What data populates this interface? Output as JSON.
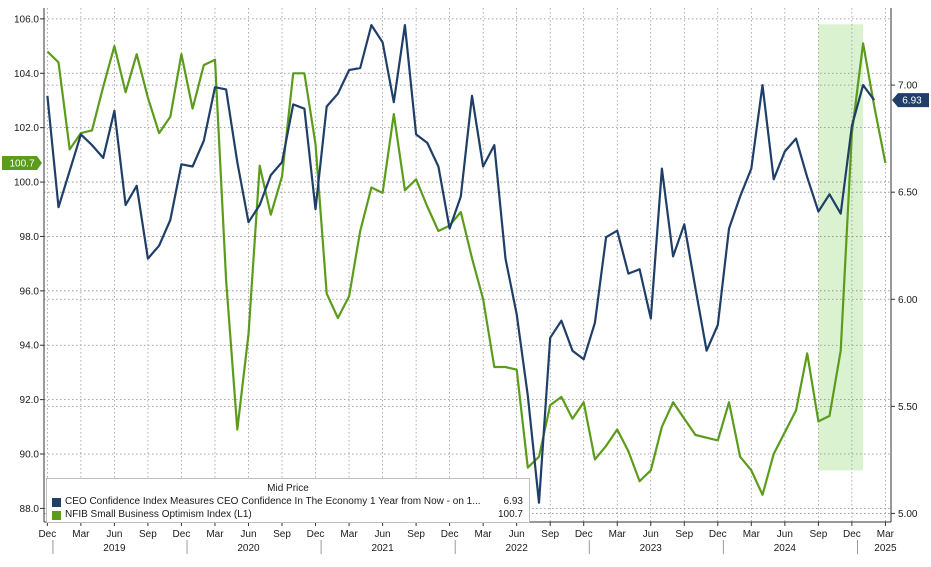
{
  "colors": {
    "ceo": "#1f3f68",
    "nfib": "#5c9c1c",
    "highlight": "#cdeec0",
    "grid": "#8a8a8a"
  },
  "legend": {
    "title": "Mid Price",
    "items": [
      {
        "label": "CEO Confidence Index Measures CEO Confidence In The Economy 1 Year from Now -  on 1...",
        "value": "6.93"
      },
      {
        "label": "NFIB Small Business Optimism Index  (L1)",
        "value": "100.7"
      }
    ]
  },
  "chart_data": {
    "type": "line",
    "title": "",
    "xlabel": "",
    "x_range": [
      "2018-12",
      "2025-03"
    ],
    "x_ticks": [
      {
        "label": "Dec",
        "date": "2018-12"
      },
      {
        "label": "Mar",
        "date": "2019-03"
      },
      {
        "label": "Jun",
        "date": "2019-06"
      },
      {
        "label": "Sep",
        "date": "2019-09"
      },
      {
        "label": "Dec",
        "date": "2019-12"
      },
      {
        "label": "Mar",
        "date": "2020-03"
      },
      {
        "label": "Jun",
        "date": "2020-06"
      },
      {
        "label": "Sep",
        "date": "2020-09"
      },
      {
        "label": "Dec",
        "date": "2020-12"
      },
      {
        "label": "Mar",
        "date": "2021-03"
      },
      {
        "label": "Jun",
        "date": "2021-06"
      },
      {
        "label": "Sep",
        "date": "2021-09"
      },
      {
        "label": "Dec",
        "date": "2021-12"
      },
      {
        "label": "Mar",
        "date": "2022-03"
      },
      {
        "label": "Jun",
        "date": "2022-06"
      },
      {
        "label": "Sep",
        "date": "2022-09"
      },
      {
        "label": "Dec",
        "date": "2022-12"
      },
      {
        "label": "Mar",
        "date": "2023-03"
      },
      {
        "label": "Jun",
        "date": "2023-06"
      },
      {
        "label": "Sep",
        "date": "2023-09"
      },
      {
        "label": "Dec",
        "date": "2023-12"
      },
      {
        "label": "Mar",
        "date": "2024-03"
      },
      {
        "label": "Jun",
        "date": "2024-06"
      },
      {
        "label": "Sep",
        "date": "2024-09"
      },
      {
        "label": "Dec",
        "date": "2024-12"
      },
      {
        "label": "Mar",
        "date": "2025-03"
      }
    ],
    "year_labels": [
      {
        "label": "2019",
        "date": "2019-06"
      },
      {
        "label": "2020",
        "date": "2020-06"
      },
      {
        "label": "2021",
        "date": "2021-06"
      },
      {
        "label": "2022",
        "date": "2022-06"
      },
      {
        "label": "2023",
        "date": "2023-06"
      },
      {
        "label": "2024",
        "date": "2024-06"
      },
      {
        "label": "2025",
        "date": "2025-03"
      }
    ],
    "left_axis": {
      "ylim": [
        87.5,
        106.4
      ],
      "ticks": [
        "88.0",
        "90.0",
        "92.0",
        "94.0",
        "96.0",
        "98.0",
        "100.0",
        "102.0",
        "104.0",
        "106.0"
      ]
    },
    "right_axis": {
      "ylim": [
        4.96,
        7.36
      ],
      "ticks": [
        "5.00",
        "5.50",
        "6.00",
        "6.50",
        "7.00"
      ]
    },
    "highlight_range": {
      "start": "2024-09",
      "end": "2025-01",
      "y_left": [
        89.4,
        105.8
      ]
    },
    "grid": "dotted",
    "legend_position": "bottom-left",
    "series": [
      {
        "name": "NFIB Small Business Optimism Index  (L1)",
        "axis": "left",
        "last_value_label": "100.7",
        "points": [
          {
            "x": "2018-12",
            "y": 104.8
          },
          {
            "x": "2019-01",
            "y": 104.4
          },
          {
            "x": "2019-02",
            "y": 101.2
          },
          {
            "x": "2019-03",
            "y": 101.8
          },
          {
            "x": "2019-04",
            "y": 101.9
          },
          {
            "x": "2019-05",
            "y": 103.5
          },
          {
            "x": "2019-06",
            "y": 105.0
          },
          {
            "x": "2019-07",
            "y": 103.3
          },
          {
            "x": "2019-08",
            "y": 104.7
          },
          {
            "x": "2019-09",
            "y": 103.1
          },
          {
            "x": "2019-10",
            "y": 101.8
          },
          {
            "x": "2019-11",
            "y": 102.4
          },
          {
            "x": "2019-12",
            "y": 104.7
          },
          {
            "x": "2020-01",
            "y": 102.7
          },
          {
            "x": "2020-02",
            "y": 104.3
          },
          {
            "x": "2020-03",
            "y": 104.5
          },
          {
            "x": "2020-04",
            "y": 96.4
          },
          {
            "x": "2020-05",
            "y": 90.9
          },
          {
            "x": "2020-06",
            "y": 94.4
          },
          {
            "x": "2020-07",
            "y": 100.6
          },
          {
            "x": "2020-08",
            "y": 98.8
          },
          {
            "x": "2020-09",
            "y": 100.2
          },
          {
            "x": "2020-10",
            "y": 104.0
          },
          {
            "x": "2020-11",
            "y": 104.0
          },
          {
            "x": "2020-12",
            "y": 101.4
          },
          {
            "x": "2021-01",
            "y": 95.9
          },
          {
            "x": "2021-02",
            "y": 95.0
          },
          {
            "x": "2021-03",
            "y": 95.8
          },
          {
            "x": "2021-04",
            "y": 98.2
          },
          {
            "x": "2021-05",
            "y": 99.8
          },
          {
            "x": "2021-06",
            "y": 99.6
          },
          {
            "x": "2021-07",
            "y": 102.5
          },
          {
            "x": "2021-08",
            "y": 99.7
          },
          {
            "x": "2021-09",
            "y": 100.1
          },
          {
            "x": "2021-10",
            "y": 99.1
          },
          {
            "x": "2021-11",
            "y": 98.2
          },
          {
            "x": "2021-12",
            "y": 98.4
          },
          {
            "x": "2022-01",
            "y": 98.9
          },
          {
            "x": "2022-02",
            "y": 97.2
          },
          {
            "x": "2022-03",
            "y": 95.7
          },
          {
            "x": "2022-04",
            "y": 93.2
          },
          {
            "x": "2022-05",
            "y": 93.2
          },
          {
            "x": "2022-06",
            "y": 93.1
          },
          {
            "x": "2022-07",
            "y": 89.5
          },
          {
            "x": "2022-08",
            "y": 89.9
          },
          {
            "x": "2022-09",
            "y": 91.8
          },
          {
            "x": "2022-10",
            "y": 92.1
          },
          {
            "x": "2022-11",
            "y": 91.3
          },
          {
            "x": "2022-12",
            "y": 91.9
          },
          {
            "x": "2023-01",
            "y": 89.8
          },
          {
            "x": "2023-02",
            "y": 90.3
          },
          {
            "x": "2023-03",
            "y": 90.9
          },
          {
            "x": "2023-04",
            "y": 90.1
          },
          {
            "x": "2023-05",
            "y": 89.0
          },
          {
            "x": "2023-06",
            "y": 89.4
          },
          {
            "x": "2023-07",
            "y": 91.0
          },
          {
            "x": "2023-08",
            "y": 91.9
          },
          {
            "x": "2023-09",
            "y": 91.3
          },
          {
            "x": "2023-10",
            "y": 90.7
          },
          {
            "x": "2023-11",
            "y": 90.6
          },
          {
            "x": "2023-12",
            "y": 90.5
          },
          {
            "x": "2024-01",
            "y": 91.9
          },
          {
            "x": "2024-02",
            "y": 89.9
          },
          {
            "x": "2024-03",
            "y": 89.4
          },
          {
            "x": "2024-04",
            "y": 88.5
          },
          {
            "x": "2024-05",
            "y": 90.0
          },
          {
            "x": "2024-06",
            "y": 90.8
          },
          {
            "x": "2024-07",
            "y": 91.6
          },
          {
            "x": "2024-08",
            "y": 93.7
          },
          {
            "x": "2024-09",
            "y": 91.2
          },
          {
            "x": "2024-10",
            "y": 91.4
          },
          {
            "x": "2024-11",
            "y": 93.8
          },
          {
            "x": "2024-12",
            "y": 101.8
          },
          {
            "x": "2025-01",
            "y": 105.1
          },
          {
            "x": "2025-02",
            "y": 102.8
          },
          {
            "x": "2025-03",
            "y": 100.7
          }
        ]
      },
      {
        "name": "CEO Confidence Index Measures CEO Confidence In The Economy 1 Year from Now -  on 1...",
        "axis": "right",
        "last_value_label": "6.93",
        "points": [
          {
            "x": "2018-12",
            "y": 6.95
          },
          {
            "x": "2019-01",
            "y": 6.43
          },
          {
            "x": "2019-02",
            "y": 6.6
          },
          {
            "x": "2019-03",
            "y": 6.77
          },
          {
            "x": "2019-04",
            "y": 6.72
          },
          {
            "x": "2019-05",
            "y": 6.66
          },
          {
            "x": "2019-06",
            "y": 6.88
          },
          {
            "x": "2019-07",
            "y": 6.44
          },
          {
            "x": "2019-08",
            "y": 6.53
          },
          {
            "x": "2019-09",
            "y": 6.19
          },
          {
            "x": "2019-10",
            "y": 6.25
          },
          {
            "x": "2019-11",
            "y": 6.37
          },
          {
            "x": "2019-12",
            "y": 6.63
          },
          {
            "x": "2020-01",
            "y": 6.62
          },
          {
            "x": "2020-02",
            "y": 6.74
          },
          {
            "x": "2020-03",
            "y": 6.99
          },
          {
            "x": "2020-04",
            "y": 6.98
          },
          {
            "x": "2020-05",
            "y": 6.64
          },
          {
            "x": "2020-06",
            "y": 6.36
          },
          {
            "x": "2020-07",
            "y": 6.44
          },
          {
            "x": "2020-08",
            "y": 6.58
          },
          {
            "x": "2020-09",
            "y": 6.64
          },
          {
            "x": "2020-10",
            "y": 6.91
          },
          {
            "x": "2020-11",
            "y": 6.89
          },
          {
            "x": "2020-12",
            "y": 6.42
          },
          {
            "x": "2021-01",
            "y": 6.9
          },
          {
            "x": "2021-02",
            "y": 6.96
          },
          {
            "x": "2021-03",
            "y": 7.07
          },
          {
            "x": "2021-04",
            "y": 7.08
          },
          {
            "x": "2021-05",
            "y": 7.28
          },
          {
            "x": "2021-06",
            "y": 7.2
          },
          {
            "x": "2021-07",
            "y": 6.92
          },
          {
            "x": "2021-08",
            "y": 7.28
          },
          {
            "x": "2021-09",
            "y": 6.77
          },
          {
            "x": "2021-10",
            "y": 6.73
          },
          {
            "x": "2021-11",
            "y": 6.62
          },
          {
            "x": "2021-12",
            "y": 6.33
          },
          {
            "x": "2022-01",
            "y": 6.48
          },
          {
            "x": "2022-02",
            "y": 6.95
          },
          {
            "x": "2022-03",
            "y": 6.62
          },
          {
            "x": "2022-04",
            "y": 6.72
          },
          {
            "x": "2022-05",
            "y": 6.19
          },
          {
            "x": "2022-06",
            "y": 5.93
          },
          {
            "x": "2022-07",
            "y": 5.55
          },
          {
            "x": "2022-08",
            "y": 5.05
          },
          {
            "x": "2022-09",
            "y": 5.82
          },
          {
            "x": "2022-10",
            "y": 5.9
          },
          {
            "x": "2022-11",
            "y": 5.76
          },
          {
            "x": "2022-12",
            "y": 5.72
          },
          {
            "x": "2023-01",
            "y": 5.89
          },
          {
            "x": "2023-02",
            "y": 6.29
          },
          {
            "x": "2023-03",
            "y": 6.32
          },
          {
            "x": "2023-04",
            "y": 6.12
          },
          {
            "x": "2023-05",
            "y": 6.14
          },
          {
            "x": "2023-06",
            "y": 5.91
          },
          {
            "x": "2023-07",
            "y": 6.61
          },
          {
            "x": "2023-08",
            "y": 6.2
          },
          {
            "x": "2023-09",
            "y": 6.35
          },
          {
            "x": "2023-10",
            "y": 6.05
          },
          {
            "x": "2023-11",
            "y": 5.76
          },
          {
            "x": "2023-12",
            "y": 5.88
          },
          {
            "x": "2024-01",
            "y": 6.33
          },
          {
            "x": "2024-02",
            "y": 6.48
          },
          {
            "x": "2024-03",
            "y": 6.61
          },
          {
            "x": "2024-04",
            "y": 7.0
          },
          {
            "x": "2024-05",
            "y": 6.56
          },
          {
            "x": "2024-06",
            "y": 6.69
          },
          {
            "x": "2024-07",
            "y": 6.75
          },
          {
            "x": "2024-08",
            "y": 6.57
          },
          {
            "x": "2024-09",
            "y": 6.41
          },
          {
            "x": "2024-10",
            "y": 6.49
          },
          {
            "x": "2024-11",
            "y": 6.4
          },
          {
            "x": "2024-12",
            "y": 6.81
          },
          {
            "x": "2025-01",
            "y": 7.0
          },
          {
            "x": "2025-02",
            "y": 6.93
          }
        ]
      }
    ]
  }
}
